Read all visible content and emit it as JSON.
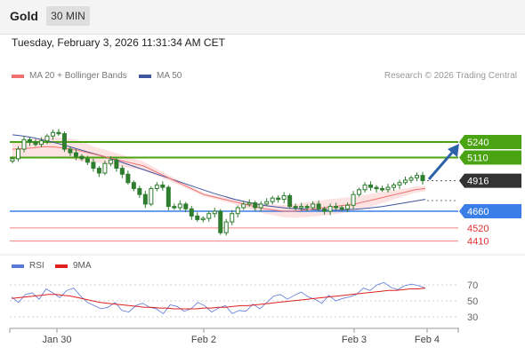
{
  "header": {
    "symbol": "Gold",
    "timeframe": "30 MIN",
    "datetime": "Tuesday, February 3, 2026 11:31:34 AM CET"
  },
  "legend": {
    "ma20_label": "MA 20 + Bollinger Bands",
    "ma50_label": "MA 50",
    "credit": "Research © 2026 Trading Central"
  },
  "rsi_legend": {
    "rsi_label": "RSI",
    "ma_label": "9MA"
  },
  "colors": {
    "candle": "#2f7d2f",
    "ma20": "#f07070",
    "ma50": "#4055a0",
    "bollinger_fill": "#fde2e2",
    "resistance": "#4aa312",
    "support": "#3a7ee8",
    "minor_support": "#f08080",
    "current_price": "#333333",
    "rsi": "#5b78d6",
    "rsi_ma": "#e02020",
    "arrow": "#2e62a8"
  },
  "chart_data": [
    {
      "type": "candlestick",
      "title": "",
      "y_range": [
        4230,
        5450
      ],
      "x_ticks": [
        "Jan 30",
        "Feb 2",
        "Feb 3",
        "Feb 4"
      ],
      "levels": [
        {
          "value": 5240,
          "label": "5240",
          "kind": "resistance"
        },
        {
          "value": 5110,
          "label": "5110",
          "kind": "resistance"
        },
        {
          "value": 4916,
          "label": "4916",
          "kind": "current"
        },
        {
          "value": 4660,
          "label": "4660",
          "kind": "support"
        },
        {
          "value": 4520,
          "label": "4520",
          "kind": "minor_support"
        },
        {
          "value": 4410,
          "label": "4410",
          "kind": "minor_support"
        }
      ],
      "close_series": [
        5100,
        5180,
        5260,
        5240,
        5220,
        5250,
        5290,
        5320,
        5310,
        5180,
        5150,
        5120,
        5100,
        5070,
        5020,
        4980,
        5060,
        5090,
        5020,
        4970,
        4900,
        4850,
        4800,
        4720,
        4850,
        4880,
        4860,
        4700,
        4690,
        4720,
        4680,
        4620,
        4590,
        4600,
        4640,
        4660,
        4480,
        4570,
        4640,
        4690,
        4720,
        4730,
        4690,
        4720,
        4740,
        4770,
        4760,
        4790,
        4700,
        4690,
        4700,
        4690,
        4720,
        4680,
        4660,
        4700,
        4690,
        4680,
        4710,
        4800,
        4840,
        4880,
        4860,
        4850,
        4840,
        4860,
        4880,
        4900,
        4920,
        4940,
        4960,
        4916
      ],
      "ma20_series": [
        5180,
        5185,
        5190,
        5200,
        5200,
        5190,
        5180,
        5160,
        5140,
        5120,
        5100,
        5080,
        5060,
        5040,
        5000,
        4960,
        4920,
        4880,
        4840,
        4800,
        4780,
        4760,
        4740,
        4720,
        4700,
        4680,
        4670,
        4660,
        4660,
        4670,
        4680,
        4690,
        4700,
        4710,
        4720,
        4740,
        4760,
        4780,
        4800,
        4820,
        4840,
        4850
      ],
      "ma50_series": [
        5300,
        5290,
        5275,
        5255,
        5235,
        5210,
        5185,
        5160,
        5135,
        5110,
        5080,
        5050,
        5020,
        4990,
        4960,
        4930,
        4900,
        4870,
        4840,
        4810,
        4785,
        4760,
        4740,
        4720,
        4705,
        4695,
        4685,
        4680,
        4675,
        4670,
        4668,
        4670,
        4675,
        4680,
        4690,
        4700,
        4715,
        4730,
        4745,
        4760
      ]
    },
    {
      "type": "line",
      "title": "RSI",
      "y_range": [
        20,
        80
      ],
      "y_ticks": [
        70,
        50,
        30
      ],
      "series": [
        {
          "name": "RSI",
          "values": [
            55,
            48,
            58,
            60,
            52,
            65,
            60,
            54,
            63,
            66,
            56,
            48,
            44,
            40,
            42,
            48,
            38,
            36,
            44,
            47,
            42,
            40,
            34,
            45,
            43,
            37,
            40,
            48,
            44,
            36,
            41,
            44,
            34,
            38,
            37,
            46,
            40,
            48,
            56,
            58,
            52,
            57,
            61,
            55,
            52,
            47,
            57,
            50,
            53,
            55,
            58,
            66,
            63,
            70,
            73,
            67,
            64,
            69,
            71,
            69,
            66
          ]
        },
        {
          "name": "9MA",
          "values": [
            53,
            54,
            55,
            56,
            57,
            58,
            58,
            57,
            56,
            54,
            52,
            50,
            48,
            47,
            46,
            45,
            44,
            43,
            42,
            42,
            41,
            41,
            40,
            40,
            40,
            40,
            41,
            41,
            42,
            42,
            43,
            44,
            44,
            45,
            46,
            47,
            48,
            49,
            50,
            51,
            52,
            53,
            54,
            55,
            56,
            57,
            58,
            59,
            60,
            61,
            62,
            63,
            63,
            64,
            65,
            65,
            66
          ]
        }
      ]
    }
  ]
}
